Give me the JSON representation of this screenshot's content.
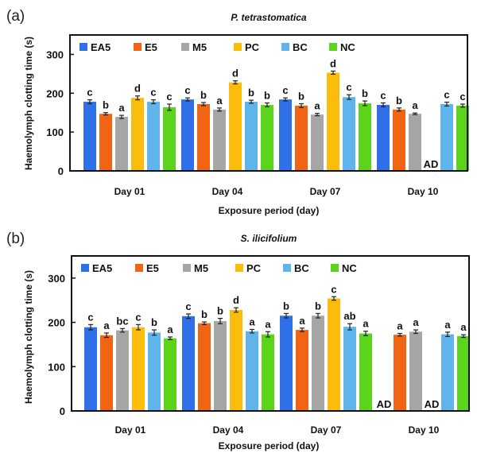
{
  "chart_data": [
    {
      "type": "bar",
      "panel_label": "(a)",
      "title": "P. tetrastomatica",
      "xlabel": "Exposure period (day)",
      "ylabel": "Haemolymph clotting time (s)",
      "ylim": [
        0,
        350
      ],
      "yticks": [
        0,
        100,
        200,
        300
      ],
      "grid": false,
      "legend_position": "top-left",
      "categories": [
        "Day 01",
        "Day 04",
        "Day 07",
        "Day 10"
      ],
      "series": [
        {
          "name": "EA5",
          "color": "#2f6fe8",
          "values": [
            178,
            184,
            184,
            170
          ],
          "errors": [
            5,
            4,
            4,
            5
          ],
          "letters": [
            "c",
            "c",
            "c",
            "c"
          ]
        },
        {
          "name": "E5",
          "color": "#f06414",
          "values": [
            147,
            172,
            168,
            158
          ],
          "errors": [
            3,
            4,
            5,
            4
          ],
          "letters": [
            "b",
            "b",
            "b",
            "b"
          ]
        },
        {
          "name": "M5",
          "color": "#a6a6a6",
          "values": [
            139,
            158,
            145,
            147
          ],
          "errors": [
            4,
            4,
            3,
            2
          ],
          "letters": [
            "a",
            "a",
            "a",
            "a"
          ]
        },
        {
          "name": "PC",
          "color": "#fcbc0c",
          "values": [
            188,
            228,
            253,
            null
          ],
          "errors": [
            5,
            4,
            4,
            null
          ],
          "letters": [
            "d",
            "d",
            "d",
            "AD"
          ]
        },
        {
          "name": "BC",
          "color": "#5fb4ec",
          "values": [
            178,
            178,
            190,
            172
          ],
          "errors": [
            5,
            4,
            6,
            5
          ],
          "letters": [
            "c",
            "b",
            "c",
            "c"
          ]
        },
        {
          "name": "NC",
          "color": "#5cd41c",
          "values": [
            164,
            170,
            174,
            168
          ],
          "errors": [
            8,
            5,
            6,
            4
          ],
          "letters": [
            "c",
            "b",
            "b",
            "c"
          ]
        }
      ]
    },
    {
      "type": "bar",
      "panel_label": "(b)",
      "title": "S. ilicifolium",
      "xlabel": "Exposure period (day)",
      "ylabel": "Haemolymph clotting time (s)",
      "ylim": [
        0,
        350
      ],
      "yticks": [
        0,
        100,
        200,
        300
      ],
      "grid": false,
      "legend_position": "top-left",
      "categories": [
        "Day 01",
        "Day 04",
        "Day 07",
        "Day 10"
      ],
      "series": [
        {
          "name": "EA5",
          "color": "#2f6fe8",
          "values": [
            189,
            214,
            215,
            null
          ],
          "errors": [
            6,
            5,
            5,
            null
          ],
          "letters": [
            "c",
            "c",
            "b",
            "AD"
          ]
        },
        {
          "name": "E5",
          "color": "#f06414",
          "values": [
            171,
            198,
            183,
            172
          ],
          "errors": [
            5,
            3,
            4,
            3
          ],
          "letters": [
            "a",
            "b",
            "a",
            "a"
          ]
        },
        {
          "name": "M5",
          "color": "#a6a6a6",
          "values": [
            182,
            203,
            215,
            179
          ],
          "errors": [
            4,
            6,
            5,
            4
          ],
          "letters": [
            "bc",
            "b",
            "b",
            "a"
          ]
        },
        {
          "name": "PC",
          "color": "#fcbc0c",
          "values": [
            189,
            228,
            254,
            null
          ],
          "errors": [
            6,
            5,
            4,
            null
          ],
          "letters": [
            "c",
            "d",
            "c",
            "AD"
          ]
        },
        {
          "name": "BC",
          "color": "#5fb4ec",
          "values": [
            177,
            180,
            190,
            173
          ],
          "errors": [
            6,
            4,
            7,
            5
          ],
          "letters": [
            "b",
            "a",
            "ab",
            "a"
          ]
        },
        {
          "name": "NC",
          "color": "#5cd41c",
          "values": [
            164,
            173,
            175,
            169
          ],
          "errors": [
            3,
            6,
            5,
            3
          ],
          "letters": [
            "a",
            "a",
            "a",
            "a"
          ]
        }
      ]
    }
  ]
}
